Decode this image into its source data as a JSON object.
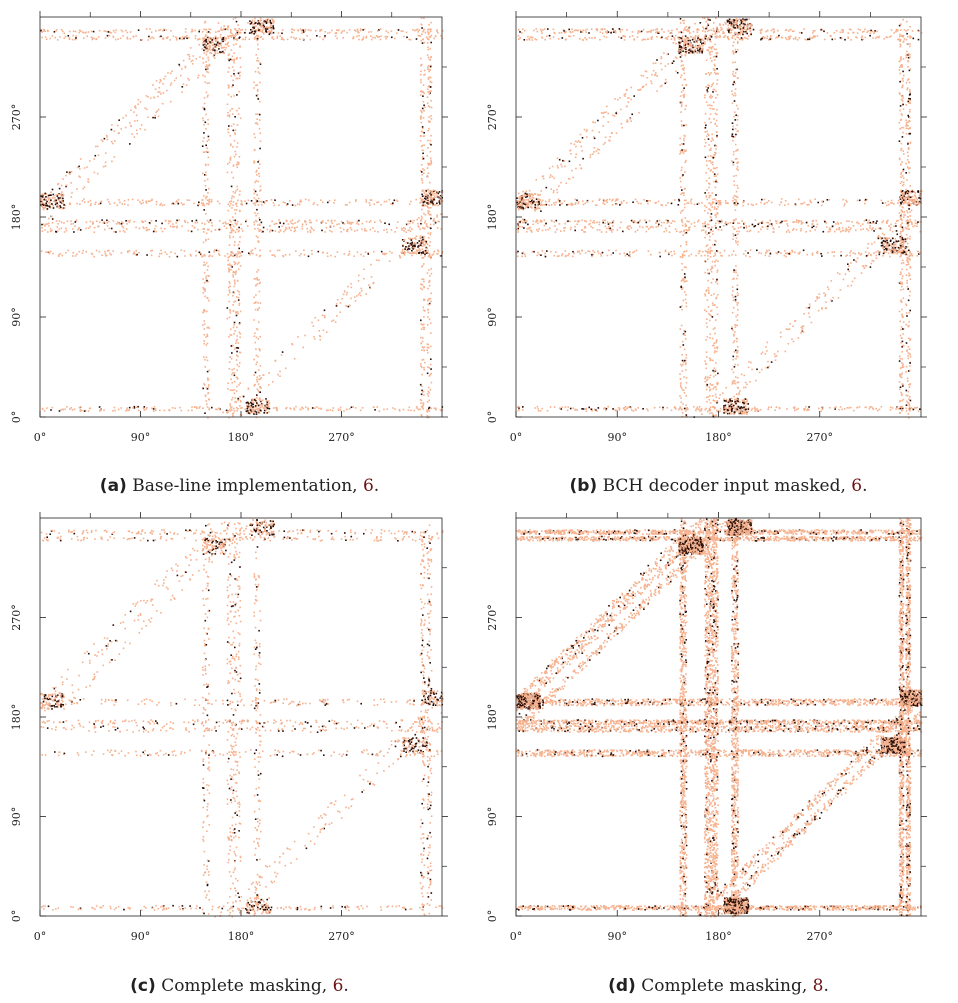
{
  "chart_data": [
    {
      "type": "heatmap",
      "panel": "a",
      "caption": {
        "tag": "(a)",
        "text": "Base-line implementation,",
        "ref": "6",
        "end": "."
      },
      "x_ticks": [
        "0°",
        "90°",
        "180°",
        "270°"
      ],
      "y_ticks": [
        "0°",
        "90°",
        "180°",
        "270°"
      ],
      "xlim": [
        0,
        360
      ],
      "ylim": [
        0,
        360
      ],
      "density": 0.25,
      "colors": {
        "low": "#f6b28f",
        "high": "#2a0d05"
      },
      "grid": false
    },
    {
      "type": "heatmap",
      "panel": "b",
      "caption": {
        "tag": "(b)",
        "text": "BCH decoder input masked,",
        "ref": "6",
        "end": "."
      },
      "x_ticks": [
        "0°",
        "90°",
        "180°",
        "270°"
      ],
      "y_ticks": [
        "0°",
        "90°",
        "180°",
        "270°"
      ],
      "xlim": [
        0,
        360
      ],
      "ylim": [
        0,
        360
      ],
      "density": 0.3,
      "colors": {
        "low": "#f6b28f",
        "high": "#2a0d05"
      },
      "grid": false
    },
    {
      "type": "heatmap",
      "panel": "c",
      "caption": {
        "tag": "(c)",
        "text": "Complete masking,",
        "ref": "6",
        "end": "."
      },
      "x_ticks": [
        "0°",
        "90°",
        "180°",
        "270°"
      ],
      "y_ticks": [
        "0°",
        "90°",
        "180°",
        "270°"
      ],
      "xlim": [
        0,
        360
      ],
      "ylim": [
        0,
        360
      ],
      "density": 0.2,
      "colors": {
        "low": "#f6b28f",
        "high": "#2a0d05"
      },
      "grid": false
    },
    {
      "type": "heatmap",
      "panel": "d",
      "caption": {
        "tag": "(d)",
        "text": "Complete masking,",
        "ref": "8",
        "end": "."
      },
      "x_ticks": [
        "0°",
        "90°",
        "180°",
        "270°"
      ],
      "y_ticks": [
        "0°",
        "90°",
        "180°",
        "270°"
      ],
      "xlim": [
        0,
        360
      ],
      "ylim": [
        0,
        360
      ],
      "density": 1.0,
      "colors": {
        "low": "#f6b28f",
        "high": "#2a0d05"
      },
      "grid": false
    }
  ]
}
